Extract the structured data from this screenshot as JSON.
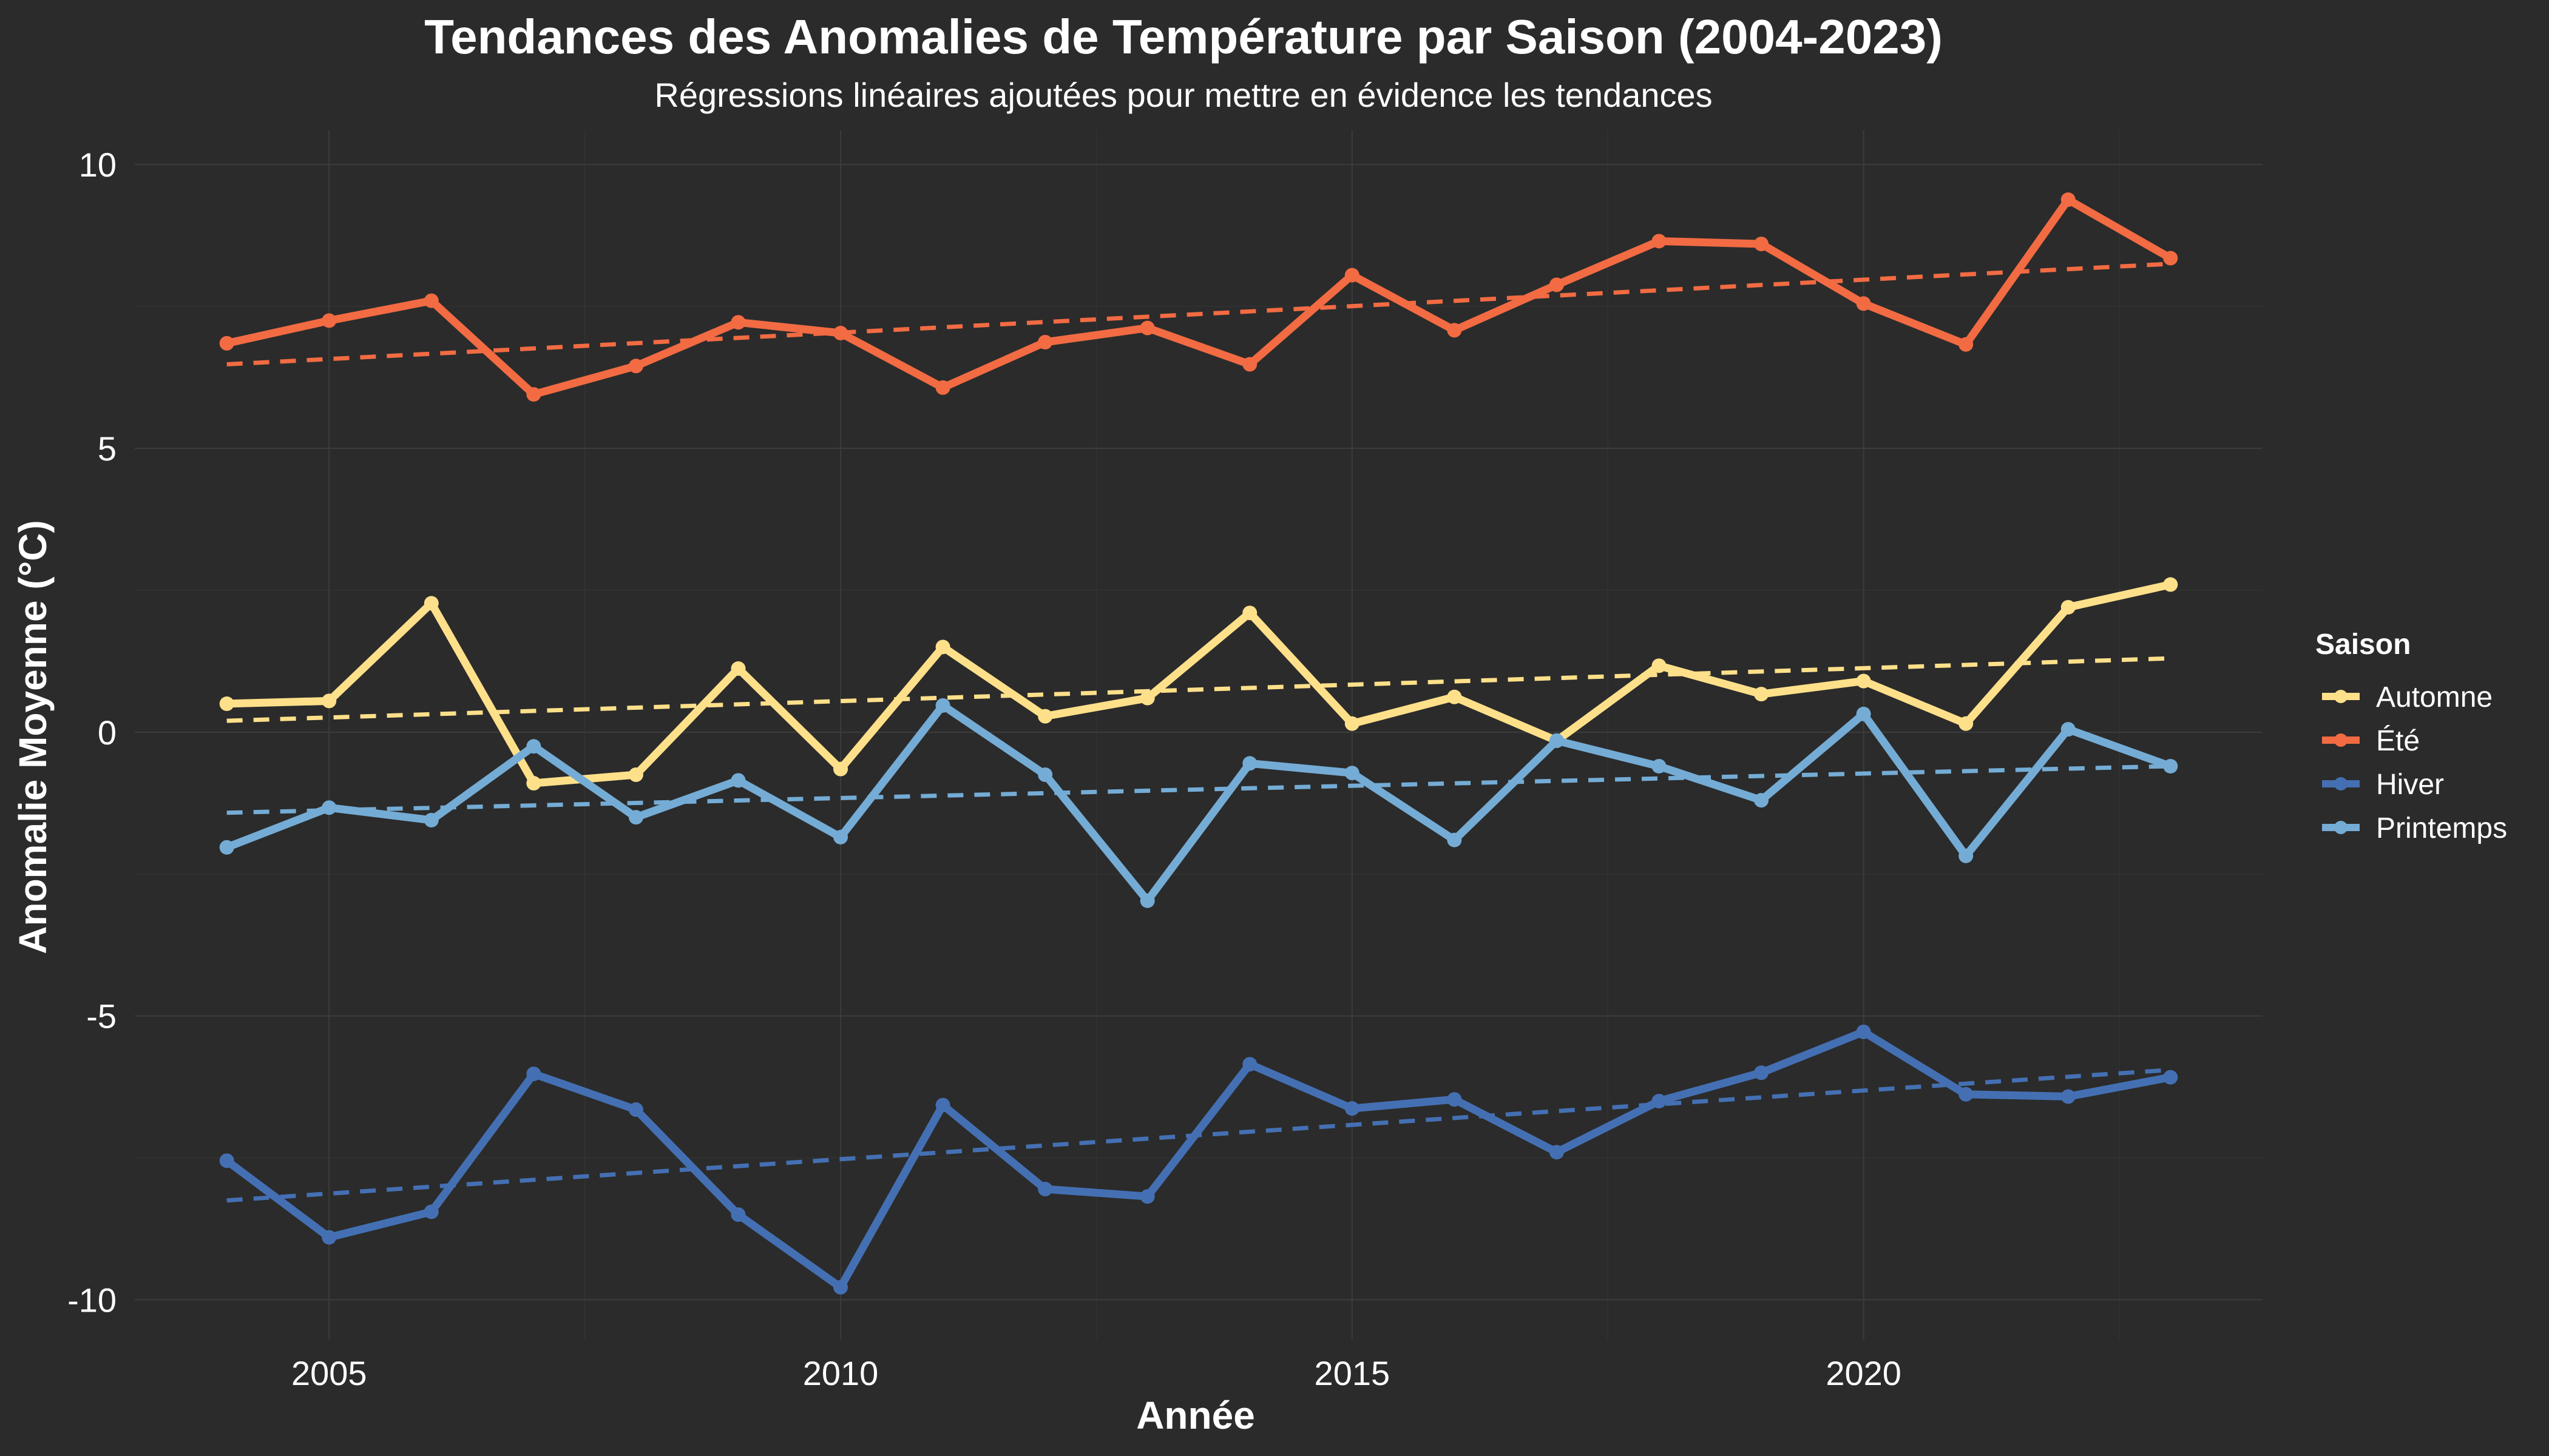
{
  "chart_data": {
    "type": "line",
    "title": "Tendances des Anomalies de Température par Saison (2004-2023)",
    "subtitle": "Régressions linéaires ajoutées pour mettre en évidence les tendances",
    "xlabel": "Année",
    "ylabel": "Anomalie Moyenne (°C)",
    "xlim": [
      2003.1,
      2023.9
    ],
    "ylim": [
      -10.7,
      10.6
    ],
    "x_ticks": [
      2005,
      2010,
      2015,
      2020
    ],
    "y_ticks": [
      -10,
      -5,
      0,
      5,
      10
    ],
    "x_tick_labels": [
      "2005",
      "2010",
      "2015",
      "2020"
    ],
    "y_tick_labels": [
      "-10",
      "-5",
      "0",
      "5",
      "10"
    ],
    "grid": true,
    "legend": {
      "title": "Saison",
      "position": "right"
    },
    "x": [
      2004,
      2005,
      2006,
      2007,
      2008,
      2009,
      2010,
      2011,
      2012,
      2013,
      2014,
      2015,
      2016,
      2017,
      2018,
      2019,
      2020,
      2021,
      2022,
      2023
    ],
    "series": [
      {
        "name": "Automne",
        "color": "#ffe08a",
        "values": [
          0.5,
          0.55,
          2.27,
          -0.9,
          -0.75,
          1.12,
          -0.65,
          1.5,
          0.28,
          0.6,
          2.1,
          0.15,
          0.62,
          -0.15,
          1.17,
          0.67,
          0.9,
          0.15,
          2.2,
          2.6
        ],
        "trend": [
          0.2,
          1.3
        ]
      },
      {
        "name": "Été",
        "color": "#f26b43",
        "values": [
          6.85,
          7.25,
          7.6,
          5.95,
          6.45,
          7.22,
          7.03,
          6.07,
          6.87,
          7.12,
          6.48,
          8.05,
          7.08,
          7.88,
          8.65,
          8.6,
          7.55,
          6.83,
          9.38,
          8.35
        ],
        "trend": [
          6.48,
          8.25
        ]
      },
      {
        "name": "Hiver",
        "color": "#4470b3",
        "values": [
          -7.55,
          -8.9,
          -8.45,
          -6.02,
          -6.65,
          -8.5,
          -9.78,
          -6.57,
          -8.05,
          -8.18,
          -5.85,
          -6.63,
          -6.47,
          -7.4,
          -6.5,
          -6.0,
          -5.28,
          -6.38,
          -6.42,
          -6.08
        ],
        "trend": [
          -8.25,
          -5.95
        ]
      },
      {
        "name": "Printemps",
        "color": "#74acd5",
        "values": [
          -2.03,
          -1.33,
          -1.55,
          -0.25,
          -1.5,
          -0.85,
          -1.85,
          0.47,
          -0.75,
          -2.97,
          -0.55,
          -0.72,
          -1.9,
          -0.15,
          -0.6,
          -1.2,
          0.32,
          -2.18,
          0.05,
          -0.6
        ],
        "trend": [
          -1.42,
          -0.6
        ]
      }
    ]
  }
}
